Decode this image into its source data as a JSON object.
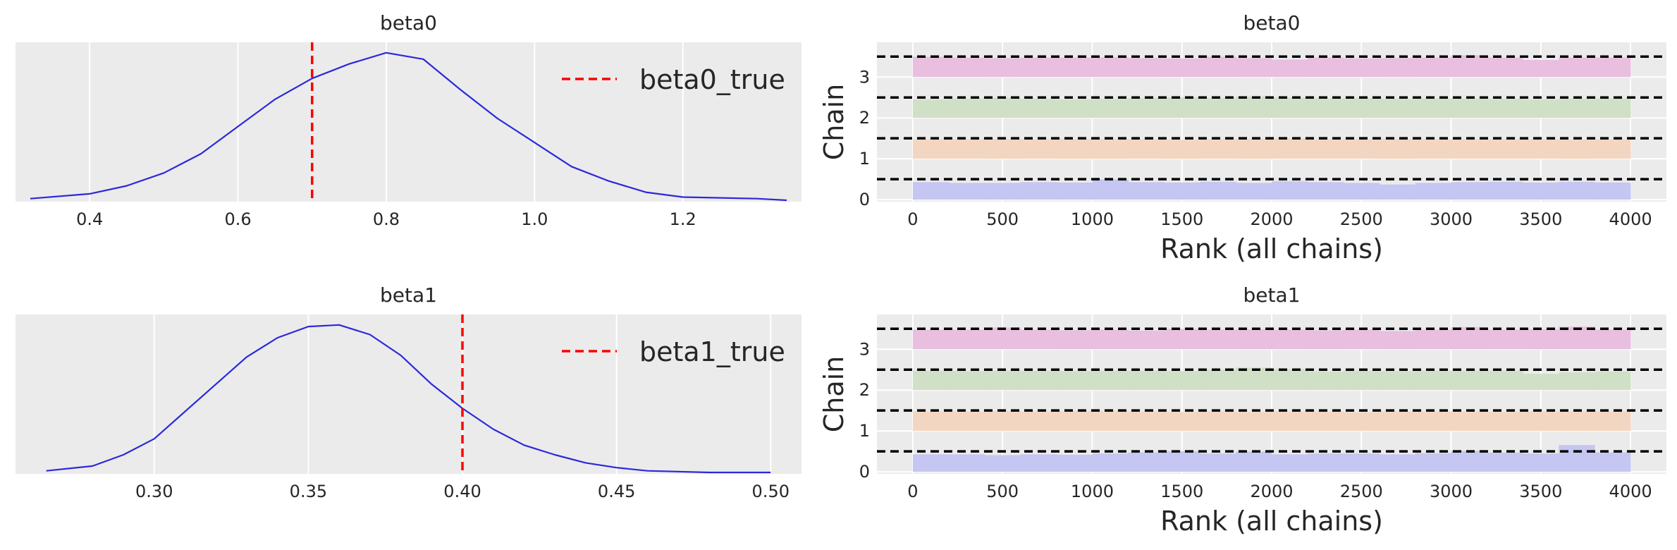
{
  "chart_data": [
    {
      "type": "line",
      "title": "beta0",
      "xlabel": "",
      "ylabel": "",
      "xlim": [
        0.3,
        1.36
      ],
      "xticks": [
        "0.4",
        "0.6",
        "0.8",
        "1.0",
        "1.2"
      ],
      "xtick_values": [
        0.4,
        0.6,
        0.8,
        1.0,
        1.2
      ],
      "grid": true,
      "legend": "upper-right",
      "series": [
        {
          "values_x": [
            0.32,
            0.4,
            0.45,
            0.5,
            0.55,
            0.6,
            0.65,
            0.7,
            0.75,
            0.8,
            0.85,
            0.9,
            0.95,
            1.0,
            1.05,
            1.1,
            1.15,
            1.2,
            1.3,
            1.34
          ],
          "values_y": [
            0.01,
            0.04,
            0.09,
            0.17,
            0.29,
            0.46,
            0.63,
            0.76,
            0.85,
            0.92,
            0.88,
            0.69,
            0.51,
            0.36,
            0.21,
            0.12,
            0.05,
            0.02,
            0.01,
            0.0
          ]
        },
        {
          "name": "beta0_true",
          "vline": 0.7
        }
      ]
    },
    {
      "type": "bar",
      "title": "beta0",
      "xlabel": "Rank (all chains)",
      "ylabel": "Chain",
      "xlim": [
        -200,
        4200
      ],
      "xticks": [
        "0",
        "500",
        "1000",
        "1500",
        "2000",
        "2500",
        "3000",
        "3500",
        "4000"
      ],
      "xtick_values": [
        0,
        500,
        1000,
        1500,
        2000,
        2500,
        3000,
        3500,
        4000
      ],
      "yticks": [
        "0",
        "1",
        "2",
        "3"
      ],
      "grid": true,
      "series": [
        {
          "name": "0",
          "values": [
            0.45,
            0.43,
            0.43,
            0.45,
            0.44,
            0.52,
            0.45,
            0.44,
            0.46,
            0.43,
            0.47,
            0.45,
            0.43,
            0.39,
            0.43,
            0.45,
            0.46,
            0.44,
            0.46,
            0.44
          ]
        },
        {
          "name": "1",
          "values": [
            0.5,
            0.5,
            0.51,
            0.5,
            0.51,
            0.51,
            0.5,
            0.49,
            0.5,
            0.51,
            0.52,
            0.5,
            0.5,
            0.51,
            0.5,
            0.5,
            0.5,
            0.5,
            0.49,
            0.5
          ]
        },
        {
          "name": "2",
          "values": [
            0.48,
            0.5,
            0.52,
            0.49,
            0.48,
            0.49,
            0.51,
            0.53,
            0.51,
            0.55,
            0.52,
            0.5,
            0.51,
            0.49,
            0.5,
            0.5,
            0.49,
            0.48,
            0.5,
            0.5
          ]
        },
        {
          "name": "3",
          "values": [
            0.52,
            0.5,
            0.49,
            0.5,
            0.5,
            0.51,
            0.49,
            0.48,
            0.52,
            0.49,
            0.45,
            0.5,
            0.48,
            0.49,
            0.5,
            0.56,
            0.5,
            0.44,
            0.5,
            0.5
          ]
        }
      ],
      "reference_lines": [
        0.5,
        1.5,
        2.5,
        3.5
      ]
    },
    {
      "type": "line",
      "title": "beta1",
      "xlabel": "",
      "ylabel": "",
      "xlim": [
        0.255,
        0.51
      ],
      "xticks": [
        "0.30",
        "0.35",
        "0.40",
        "0.45",
        "0.50"
      ],
      "xtick_values": [
        0.3,
        0.35,
        0.4,
        0.45,
        0.5
      ],
      "grid": true,
      "legend": "upper-right",
      "series": [
        {
          "values_x": [
            0.265,
            0.28,
            0.29,
            0.3,
            0.31,
            0.32,
            0.33,
            0.34,
            0.35,
            0.36,
            0.37,
            0.38,
            0.39,
            0.4,
            0.41,
            0.42,
            0.43,
            0.44,
            0.45,
            0.46,
            0.48,
            0.5
          ],
          "values_y": [
            0.01,
            0.04,
            0.11,
            0.21,
            0.38,
            0.55,
            0.72,
            0.84,
            0.91,
            0.92,
            0.86,
            0.73,
            0.55,
            0.4,
            0.27,
            0.17,
            0.11,
            0.06,
            0.03,
            0.01,
            0.0,
            0.0
          ]
        },
        {
          "name": "beta1_true",
          "vline": 0.4
        }
      ]
    },
    {
      "type": "bar",
      "title": "beta1",
      "xlabel": "Rank (all chains)",
      "ylabel": "Chain",
      "xlim": [
        -200,
        4200
      ],
      "xticks": [
        "0",
        "500",
        "1000",
        "1500",
        "2000",
        "2500",
        "3000",
        "3500",
        "4000"
      ],
      "xtick_values": [
        0,
        500,
        1000,
        1500,
        2000,
        2500,
        3000,
        3500,
        4000
      ],
      "yticks": [
        "0",
        "1",
        "2",
        "3"
      ],
      "grid": true,
      "series": [
        {
          "name": "0",
          "values": [
            0.45,
            0.45,
            0.43,
            0.45,
            0.44,
            0.47,
            0.5,
            0.53,
            0.47,
            0.52,
            0.45,
            0.47,
            0.47,
            0.45,
            0.48,
            0.54,
            0.49,
            0.47,
            0.69,
            0.5
          ]
        },
        {
          "name": "1",
          "values": [
            0.5,
            0.5,
            0.51,
            0.5,
            0.51,
            0.52,
            0.5,
            0.49,
            0.5,
            0.49,
            0.5,
            0.5,
            0.48,
            0.5,
            0.5,
            0.5,
            0.49,
            0.5,
            0.5,
            0.5
          ]
        },
        {
          "name": "2",
          "values": [
            0.5,
            0.49,
            0.5,
            0.5,
            0.49,
            0.5,
            0.5,
            0.49,
            0.53,
            0.58,
            0.54,
            0.48,
            0.5,
            0.49,
            0.5,
            0.5,
            0.5,
            0.42,
            0.46,
            0.48
          ]
        },
        {
          "name": "3",
          "values": [
            0.5,
            0.5,
            0.56,
            0.5,
            0.49,
            0.5,
            0.48,
            0.52,
            0.5,
            0.51,
            0.5,
            0.49,
            0.5,
            0.47,
            0.5,
            0.57,
            0.5,
            0.51,
            0.58,
            0.5
          ]
        }
      ],
      "reference_lines": [
        0.5,
        1.5,
        2.5,
        3.5
      ]
    }
  ],
  "colors": {
    "kde_line": "#2b28dc",
    "true_line": "#ff0000",
    "axes_bg": "#ebebeb",
    "grid": "#ffffff",
    "ref_line": "#000000",
    "chain_0": "#c5c6f1",
    "chain_1": "#f3d6c1",
    "chain_2": "#cfe0c6",
    "chain_3": "#e8bfde"
  }
}
